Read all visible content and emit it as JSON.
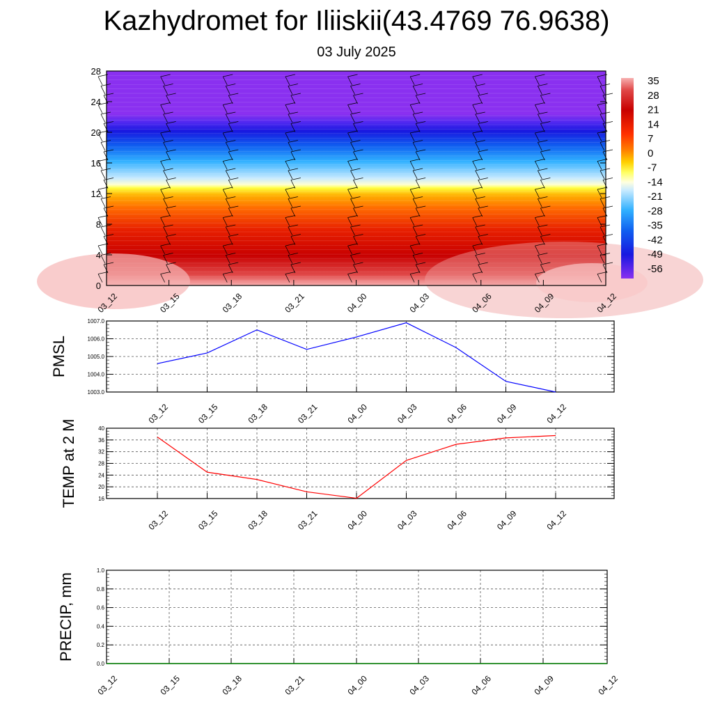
{
  "header": {
    "title": "Kazhydromet for Iliiskii(43.4769 76.9638)",
    "date": "03 July 2025"
  },
  "chart_data": [
    {
      "type": "heatmap",
      "name": "vertical-temperature-profile",
      "x_ticks": [
        "03_12",
        "03_15",
        "03_18",
        "03_21",
        "04_00",
        "04_03",
        "04_06",
        "04_09",
        "04_12"
      ],
      "y_ticks": [
        "0",
        "4",
        "8",
        "12",
        "16",
        "20",
        "24",
        "28"
      ],
      "ylim": [
        0,
        28
      ],
      "colorbar_labels": [
        "35",
        "28",
        "21",
        "14",
        "7",
        "0",
        "-7",
        "-14",
        "-21",
        "-28",
        "-35",
        "-42",
        "-49",
        "-56"
      ],
      "colors": {
        "hot": "#c80000",
        "warm": "#ff5000",
        "yellow": "#ffff40",
        "light_blue": "#a0d8ff",
        "cyan_blue": "#20a0ff",
        "blue": "#2020ff",
        "purple": "#8a30f0"
      },
      "wind_barbs": true
    },
    {
      "type": "line",
      "ylabel": "PMSL",
      "x": [
        "03_12",
        "03_15",
        "03_18",
        "03_21",
        "04_00",
        "04_03",
        "04_06",
        "04_09",
        "04_12"
      ],
      "values": [
        1004.6,
        1005.2,
        1006.5,
        1005.4,
        1006.1,
        1006.9,
        1005.5,
        1003.6,
        1003.0
      ],
      "ylim": [
        1003.0,
        1007.0
      ],
      "y_ticks": [
        "1003.0",
        "1004.0",
        "1005.0",
        "1006.0",
        "1007.0"
      ],
      "color": "#0000ff",
      "grid": true
    },
    {
      "type": "line",
      "ylabel": "TEMP at 2 M",
      "x": [
        "03_12",
        "03_15",
        "03_18",
        "03_21",
        "04_00",
        "04_03",
        "04_06",
        "04_09",
        "04_12"
      ],
      "values": [
        37.0,
        25.0,
        22.5,
        18.3,
        16.1,
        29.0,
        34.5,
        36.7,
        37.5
      ],
      "ylim": [
        16,
        40
      ],
      "y_ticks": [
        "16",
        "20",
        "24",
        "28",
        "32",
        "36",
        "40"
      ],
      "color": "#ff0000",
      "grid": true
    },
    {
      "type": "line",
      "ylabel": "PRECIP, mm",
      "x": [
        "03_12",
        "03_15",
        "03_18",
        "03_21",
        "04_00",
        "04_03",
        "04_06",
        "04_09",
        "04_12"
      ],
      "values": [
        0,
        0,
        0,
        0,
        0,
        0,
        0,
        0,
        0
      ],
      "ylim": [
        0,
        1
      ],
      "y_ticks": [
        "0.0",
        "0.2",
        "0.4",
        "0.6",
        "0.8",
        "1.0"
      ],
      "color": "#008000",
      "grid": true
    }
  ]
}
